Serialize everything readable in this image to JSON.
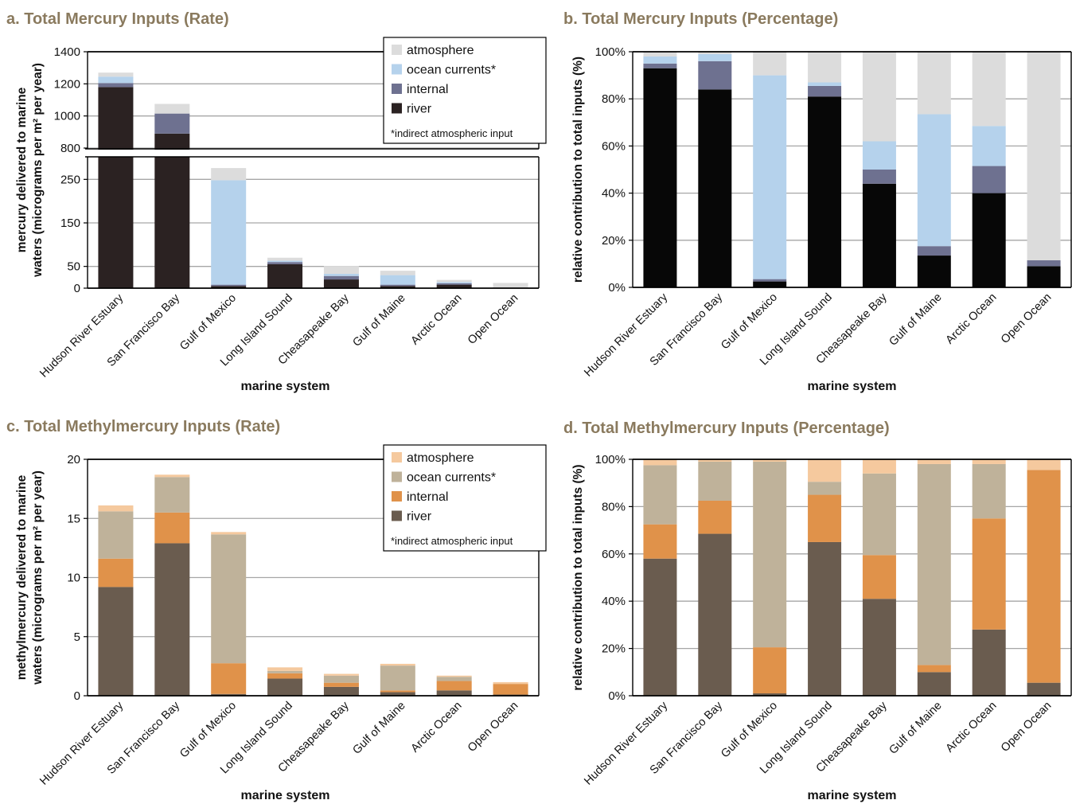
{
  "colors": {
    "hg": {
      "atmosphere": "#dcdcdc",
      "ocean_currents": "#b5d2ec",
      "internal": "#6e7190",
      "river": "#2b2222",
      "river_pct": "#070707"
    },
    "mehg": {
      "atmosphere": "#f5c99e",
      "ocean_currents": "#bfb29a",
      "internal": "#e0924a",
      "river": "#6a5c4f"
    },
    "title": "#8a7a5e",
    "grid": "#a6a6a6"
  },
  "footnote": "*indirect atmospheric input",
  "chart_data": [
    {
      "id": "a",
      "type": "bar",
      "stacked": true,
      "title": "a. Total Mercury Inputs (Rate)",
      "xlabel": "marine system",
      "ylabel": [
        "mercury delivered to marine",
        "waters (micrograms per m² per year)"
      ],
      "axis_break": {
        "lower_max": 300,
        "upper_min": 800,
        "upper_max": 1400
      },
      "yticks_lower": [
        "0",
        "50",
        "150",
        "250"
      ],
      "yticks_upper": [
        "800",
        "1000",
        "1200",
        "1400"
      ],
      "grid": true,
      "legend": {
        "position": "top-right",
        "entries": [
          "atmosphere",
          "ocean currents*",
          "internal",
          "river"
        ]
      },
      "categories": [
        "Hudson River Estuary",
        "San Francisco Bay",
        "Gulf of Mexico",
        "Long Island Sound",
        "Cheasapeake Bay",
        "Gulf of Maine",
        "Arctic Ocean",
        "Open Ocean"
      ],
      "series": [
        {
          "name": "river",
          "values": [
            1180,
            890,
            5,
            55,
            20,
            5,
            8,
            0
          ]
        },
        {
          "name": "internal",
          "values": [
            25,
            125,
            3,
            5,
            8,
            3,
            3,
            1
          ]
        },
        {
          "name": "ocean currents*",
          "values": [
            40,
            0,
            240,
            3,
            5,
            22,
            3,
            0
          ]
        },
        {
          "name": "atmosphere",
          "values": [
            25,
            60,
            28,
            7,
            18,
            10,
            5,
            11
          ]
        }
      ]
    },
    {
      "id": "b",
      "type": "bar",
      "stacked": true,
      "title": "b. Total Mercury Inputs (Percentage)",
      "xlabel": "marine system",
      "ylabel": [
        "relative contribution to total inputs (%)"
      ],
      "ylim": [
        0,
        100
      ],
      "yticks": [
        "0%",
        "20%",
        "40%",
        "60%",
        "80%",
        "100%"
      ],
      "grid": true,
      "categories": [
        "Hudson River Estuary",
        "San Francisco Bay",
        "Gulf of Mexico",
        "Long Island Sound",
        "Cheasapeake Bay",
        "Gulf of Maine",
        "Arctic Ocean",
        "Open Ocean"
      ],
      "series": [
        {
          "name": "river",
          "values": [
            93,
            84,
            2.5,
            81,
            44,
            13.5,
            40,
            9
          ]
        },
        {
          "name": "internal",
          "values": [
            2,
            12,
            1,
            4.5,
            6,
            4,
            11.5,
            2.5
          ]
        },
        {
          "name": "ocean currents*",
          "values": [
            3,
            3,
            86.5,
            1.5,
            12,
            56,
            17,
            0
          ]
        },
        {
          "name": "atmosphere",
          "values": [
            2,
            1,
            10,
            13,
            38,
            26.5,
            31.5,
            88.5
          ]
        }
      ]
    },
    {
      "id": "c",
      "type": "bar",
      "stacked": true,
      "title": "c. Total Methylmercury Inputs (Rate)",
      "xlabel": "marine system",
      "ylabel": [
        "methylmercury delivered to marine",
        "waters (micrograms per m² per year)"
      ],
      "ylim": [
        0,
        20
      ],
      "yticks": [
        "0",
        "5",
        "10",
        "15",
        "20"
      ],
      "grid": true,
      "legend": {
        "position": "top-right",
        "entries": [
          "atmosphere",
          "ocean currents*",
          "internal",
          "river"
        ]
      },
      "categories": [
        "Hudson River Estuary",
        "San Francisco Bay",
        "Gulf of Mexico",
        "Long Island Sound",
        "Cheasapeake Bay",
        "Gulf of Maine",
        "Arctic Ocean",
        "Open Ocean"
      ],
      "series": [
        {
          "name": "river",
          "values": [
            9.2,
            12.9,
            0.15,
            1.45,
            0.75,
            0.3,
            0.45,
            0.1
          ]
        },
        {
          "name": "internal",
          "values": [
            2.4,
            2.6,
            2.6,
            0.45,
            0.35,
            0.15,
            0.8,
            0.9
          ]
        },
        {
          "name": "ocean currents*",
          "values": [
            4,
            3,
            10.9,
            0.2,
            0.6,
            2.1,
            0.35,
            0
          ]
        },
        {
          "name": "atmosphere",
          "values": [
            0.5,
            0.2,
            0.2,
            0.3,
            0.15,
            0.15,
            0.1,
            0.15
          ]
        }
      ]
    },
    {
      "id": "d",
      "type": "bar",
      "stacked": true,
      "title": "d. Total Methylmercury Inputs (Percentage)",
      "xlabel": "marine system",
      "ylabel": [
        "relative contribution to total inputs (%)"
      ],
      "ylim": [
        0,
        100
      ],
      "yticks": [
        "0%",
        "20%",
        "40%",
        "60%",
        "80%",
        "100%"
      ],
      "grid": true,
      "categories": [
        "Hudson River Estuary",
        "San Francisco Bay",
        "Gulf of Mexico",
        "Long Island Sound",
        "Cheasapeake Bay",
        "Gulf of Maine",
        "Arctic Ocean",
        "Open Ocean"
      ],
      "series": [
        {
          "name": "river",
          "values": [
            58,
            68.5,
            1,
            65,
            41,
            10,
            28,
            5.5
          ]
        },
        {
          "name": "internal",
          "values": [
            14.5,
            14,
            19.5,
            20,
            18.5,
            3,
            47,
            90
          ]
        },
        {
          "name": "ocean currents*",
          "values": [
            25,
            16.5,
            78.5,
            5.5,
            34.5,
            85,
            23,
            0
          ]
        },
        {
          "name": "atmosphere",
          "values": [
            2.5,
            1,
            1,
            9.5,
            6,
            2,
            2,
            4.5
          ]
        }
      ]
    }
  ]
}
